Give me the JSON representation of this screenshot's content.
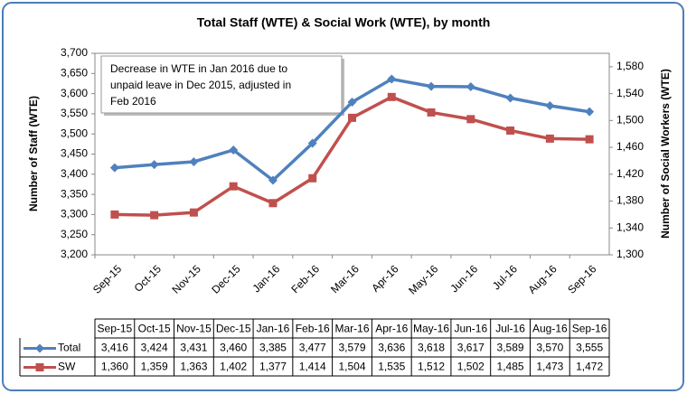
{
  "chart_data": {
    "type": "line",
    "title": "Total Staff (WTE) & Social Work (WTE), by month",
    "ylabel": "Number of Staff (WTE)",
    "y2label": "Number of Social Workers (WTE)",
    "annotation": [
      "Decrease in WTE in Jan 2016  due to",
      "unpaid leave in Dec 2015, adjusted in",
      "Feb 2016"
    ],
    "categories": [
      "Sep-15",
      "Oct-15",
      "Nov-15",
      "Dec-15",
      "Jan-16",
      "Feb-16",
      "Mar-16",
      "Apr-16",
      "May-16",
      "Jun-16",
      "Jul-16",
      "Aug-16",
      "Sep-16"
    ],
    "series": [
      {
        "name": "Total",
        "color": "#4f81bd",
        "marker": "diamond",
        "values": [
          3416,
          3424,
          3431,
          3460,
          3385,
          3477,
          3579,
          3636,
          3618,
          3617,
          3589,
          3570,
          3555
        ],
        "value_labels": [
          "3,416",
          "3,424",
          "3,431",
          "3,460",
          "3,385",
          "3,477",
          "3,579",
          "3,636",
          "3,618",
          "3,617",
          "3,589",
          "3,570",
          "3,555"
        ]
      },
      {
        "name": "SW",
        "color": "#c0504d",
        "marker": "square",
        "axis": "y2",
        "values": [
          1360,
          1359,
          1363,
          1402,
          1377,
          1414,
          1504,
          1535,
          1512,
          1502,
          1485,
          1473,
          1472
        ],
        "value_labels": [
          "1,360",
          "1,359",
          "1,363",
          "1,402",
          "1,377",
          "1,414",
          "1,504",
          "1,535",
          "1,512",
          "1,502",
          "1,485",
          "1,473",
          "1,472"
        ]
      }
    ],
    "ylim": [
      3200,
      3700
    ],
    "yticks": [
      {
        "value": 3200,
        "label": "3,200"
      },
      {
        "value": 3250,
        "label": "3,250"
      },
      {
        "value": 3300,
        "label": "3,300"
      },
      {
        "value": 3350,
        "label": "3,350"
      },
      {
        "value": 3400,
        "label": "3,400"
      },
      {
        "value": 3450,
        "label": "3,450"
      },
      {
        "value": 3500,
        "label": "3,500"
      },
      {
        "value": 3550,
        "label": "3,550"
      },
      {
        "value": 3600,
        "label": "3,600"
      },
      {
        "value": 3650,
        "label": "3,650"
      },
      {
        "value": 3700,
        "label": "3,700"
      }
    ],
    "y2lim": [
      1300,
      1600
    ],
    "y2ticks": [
      {
        "value": 1300,
        "label": "1,300"
      },
      {
        "value": 1340,
        "label": "1,340"
      },
      {
        "value": 1380,
        "label": "1,380"
      },
      {
        "value": 1420,
        "label": "1,420"
      },
      {
        "value": 1460,
        "label": "1,460"
      },
      {
        "value": 1500,
        "label": "1,500"
      },
      {
        "value": 1540,
        "label": "1,540"
      },
      {
        "value": 1580,
        "label": "1,580"
      }
    ]
  }
}
